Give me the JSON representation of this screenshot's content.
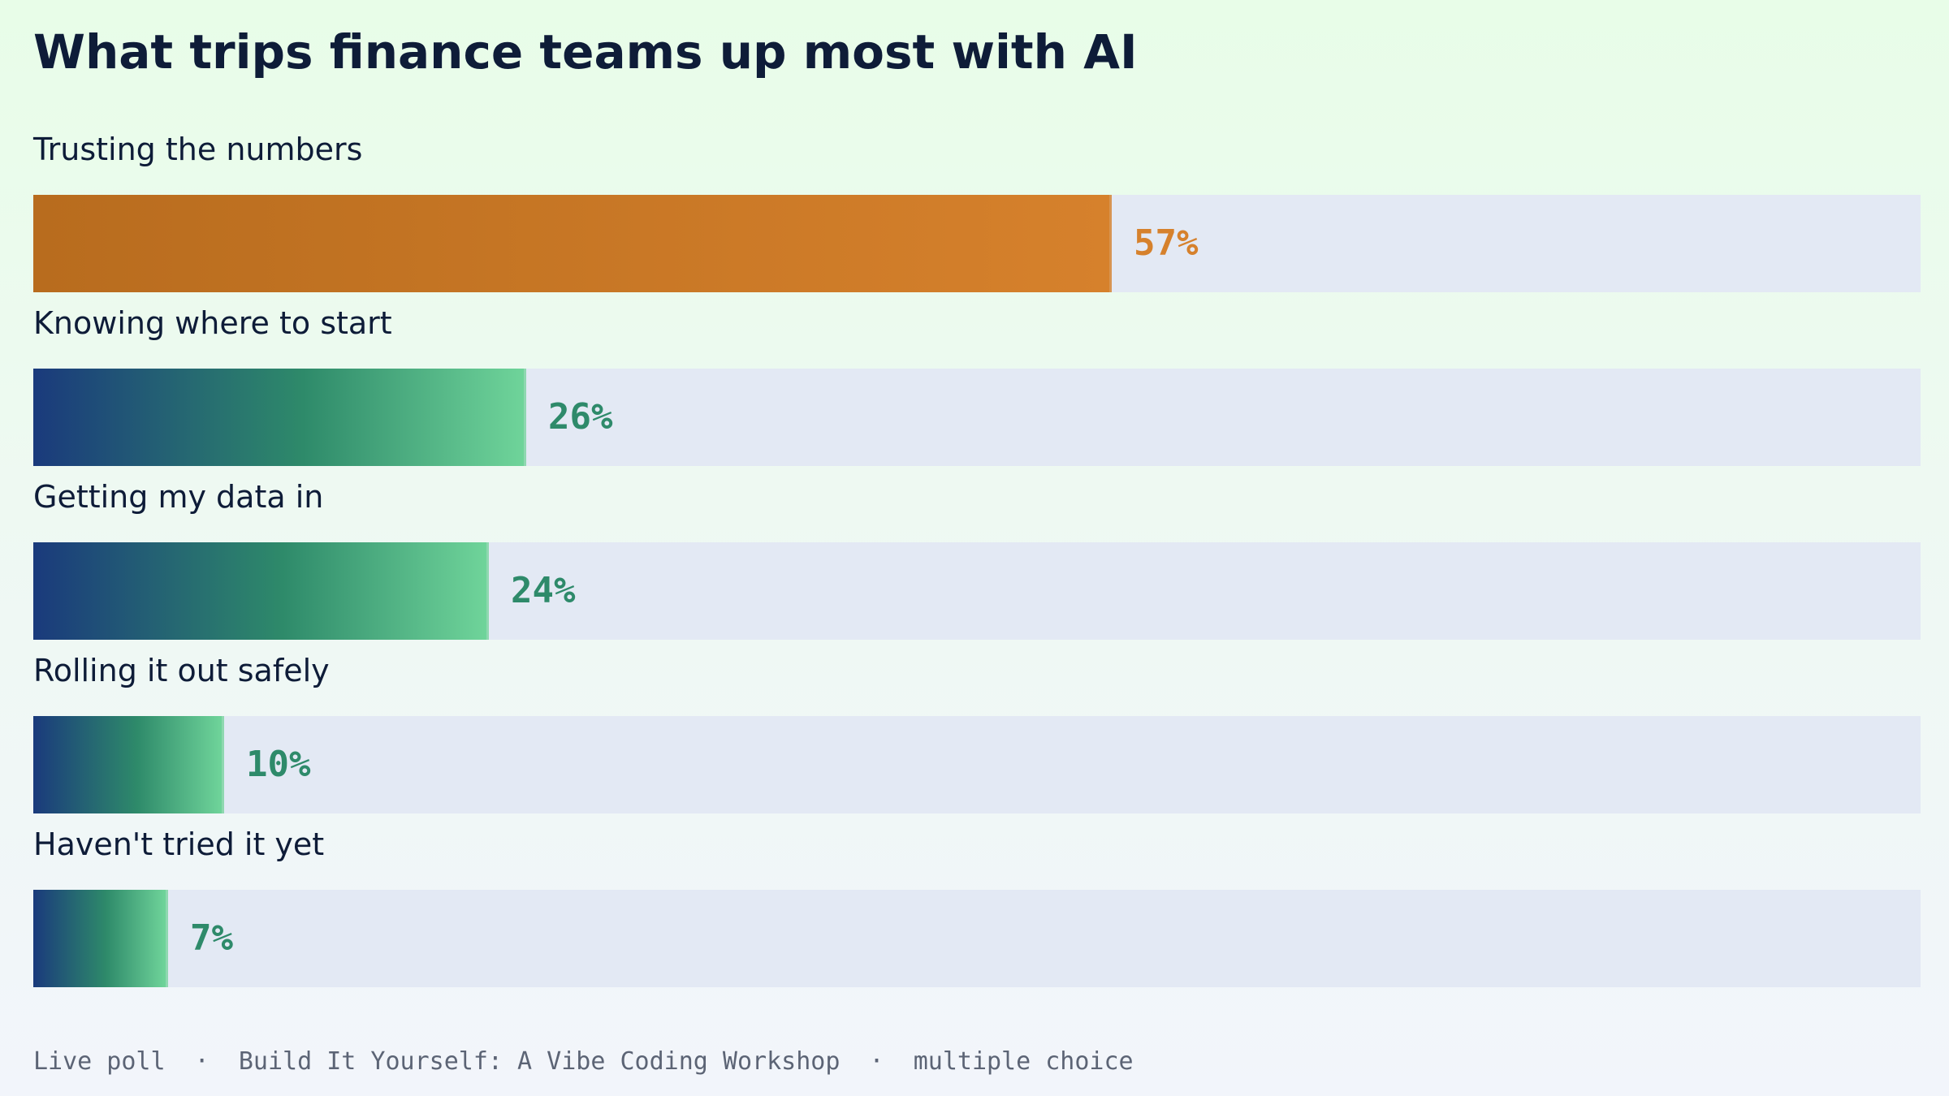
{
  "footer": {
    "text": "Live poll  ·  Build It Yourself: A Vibe Coding Workshop  ·  multiple choice"
  },
  "colors": {
    "highlight": "#d6812c",
    "standard": "#2e8a6a",
    "track": "#e3e9f4",
    "title": "#0e1c38"
  },
  "chart_data": {
    "type": "bar",
    "orientation": "horizontal",
    "title": "What trips finance teams up most with AI",
    "xlabel": "",
    "ylabel": "",
    "xlim": [
      0,
      100
    ],
    "unit": "%",
    "grid": false,
    "legend": "none",
    "categories": [
      "Trusting the numbers",
      "Knowing where to start",
      "Getting my data in",
      "Rolling it out safely",
      "Haven't tried it yet"
    ],
    "values": [
      57,
      26,
      24,
      10,
      7
    ],
    "value_labels": [
      "57%",
      "26%",
      "24%",
      "10%",
      "7%"
    ],
    "highlighted_category": "Trusting the numbers"
  }
}
